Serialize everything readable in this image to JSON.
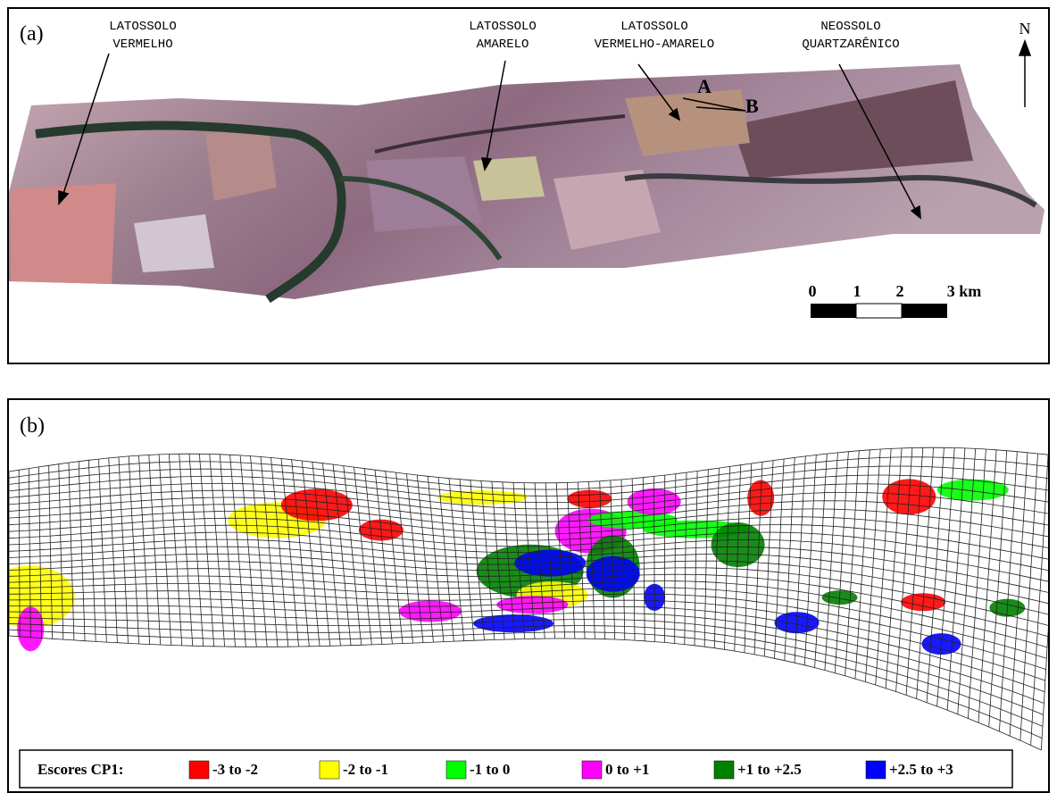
{
  "panel_a": {
    "tag": "(a)",
    "labels": [
      {
        "lines": [
          "LATOSSOLO",
          "VERMELHO"
        ]
      },
      {
        "lines": [
          "LATOSSOLO",
          "AMARELO"
        ]
      },
      {
        "lines": [
          "LATOSSOLO",
          "VERMELHO-AMARELO"
        ]
      },
      {
        "lines": [
          "NEOSSOLO",
          "QUARTZARÊNICO"
        ]
      }
    ],
    "points": [
      "A",
      "B"
    ],
    "north": "N",
    "scale_labels": [
      "0",
      "1",
      "2",
      "3 km"
    ]
  },
  "panel_b": {
    "tag": "(b)",
    "legend": {
      "title": "Escores CP1:",
      "items": [
        {
          "label": "-3 to -2",
          "color": "#ff0000"
        },
        {
          "label": "-2 to -1",
          "color": "#ffff00"
        },
        {
          "label": "-1 to 0",
          "color": "#00ff00"
        },
        {
          "label": "0 to +1",
          "color": "#ff00ff"
        },
        {
          "label": "+1 to +2.5",
          "color": "#008000"
        },
        {
          "label": "+2.5 to +3",
          "color": "#0000ff"
        }
      ]
    }
  }
}
